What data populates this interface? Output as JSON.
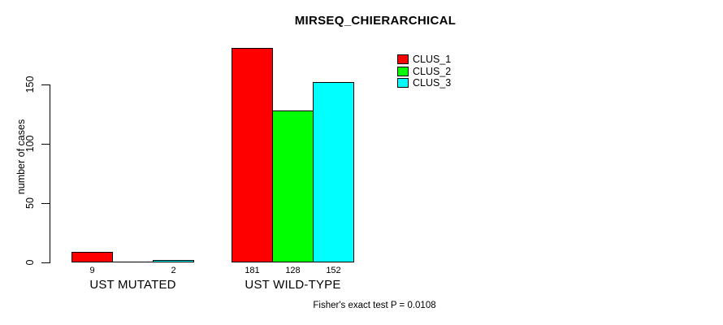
{
  "chart_data": {
    "type": "bar",
    "title": "MIRSEQ_CHIERARCHICAL",
    "xlabel": "",
    "ylabel": "number of cases",
    "ylim": [
      0,
      150
    ],
    "yticks": [
      0,
      50,
      100,
      150
    ],
    "grid": false,
    "legend_position": "top-right-inside",
    "background_color": "#ffffff",
    "categories": [
      "UST MUTATED",
      "UST WILD-TYPE"
    ],
    "series": [
      {
        "name": "CLUS_1",
        "color": "#ff0000",
        "values": [
          9,
          181
        ]
      },
      {
        "name": "CLUS_2",
        "color": "#00ff00",
        "values": [
          0,
          128
        ]
      },
      {
        "name": "CLUS_3",
        "color": "#00ffff",
        "values": [
          2,
          152
        ]
      }
    ],
    "bar_value_labels": [
      [
        "9",
        "",
        "2"
      ],
      [
        "181",
        "128",
        "152"
      ]
    ],
    "annotation": "Fisher's exact test P = 0.0108"
  }
}
